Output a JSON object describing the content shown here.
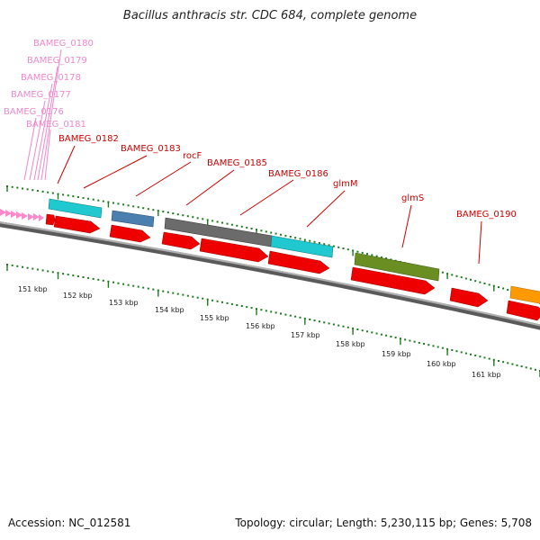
{
  "title": "Bacillus anthracis str. CDC 684, complete genome",
  "footer": {
    "accession": "Accession: NC_012581",
    "topology": "Topology: circular; Length: 5,230,115 bp; Genes: 5,708"
  },
  "scale_labels": [
    "151 kbp",
    "152 kbp",
    "153 kbp",
    "154 kbp",
    "155 kbp",
    "156 kbp",
    "157 kbp",
    "158 kbp",
    "159 kbp",
    "160 kbp",
    "161 kbp"
  ],
  "genes_faded": [
    "BAMEG_0180",
    "BAMEG_0179",
    "BAMEG_0178",
    "BAMEG_0177",
    "BAMEG_0176",
    "BAMEG_0181"
  ],
  "genes": [
    "BAMEG_0182",
    "BAMEG_0183",
    "rocF",
    "BAMEG_0185",
    "BAMEG_0186",
    "glmM",
    "glmS",
    "BAMEG_0190"
  ],
  "colors": {
    "gene_label": "#cc0000",
    "faded_label": "#ee88cc",
    "cds_red": "#ee0000",
    "cyan": "#20c8d0",
    "steel_blue": "#4a7fb0",
    "gray": "#6b6b6b",
    "olive": "#6b8e23",
    "orange": "#ff9900",
    "pink": "#ff88cc",
    "tick_green": "#1e7a1e",
    "backbone": "#8a8a8a"
  }
}
